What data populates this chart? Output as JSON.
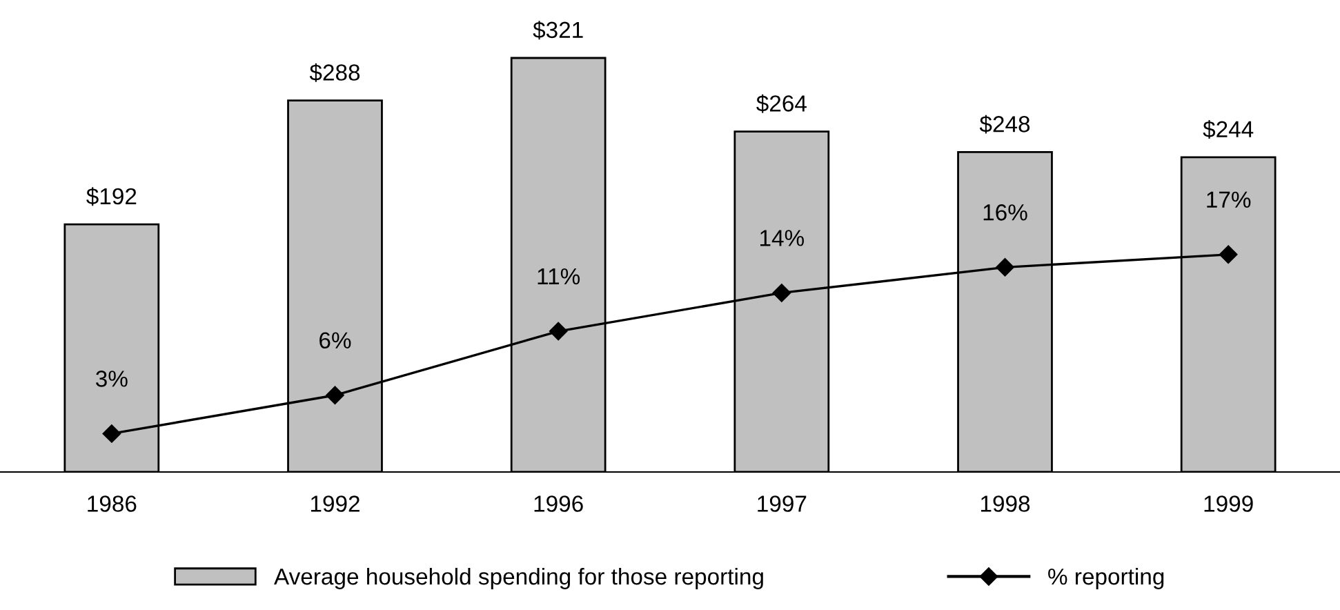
{
  "chart_data": {
    "type": "bar",
    "categories": [
      "1986",
      "1992",
      "1996",
      "1997",
      "1998",
      "1999"
    ],
    "series": [
      {
        "name": "Average household spending for those reporting",
        "color": "#c0c0c0",
        "values": [
          192,
          288,
          321,
          264,
          248,
          244
        ],
        "value_labels": [
          "$192",
          "$288",
          "$321",
          "$264",
          "$248",
          "$244"
        ]
      },
      {
        "name": "% reporting",
        "type": "line",
        "axis": "y2",
        "color": "#000000",
        "marker": "diamond",
        "values": [
          3,
          6,
          11,
          14,
          16,
          17
        ],
        "value_labels": [
          "3%",
          "6%",
          "11%",
          "14%",
          "16%",
          "17%"
        ]
      }
    ],
    "legend": "bottom",
    "grid": false
  }
}
